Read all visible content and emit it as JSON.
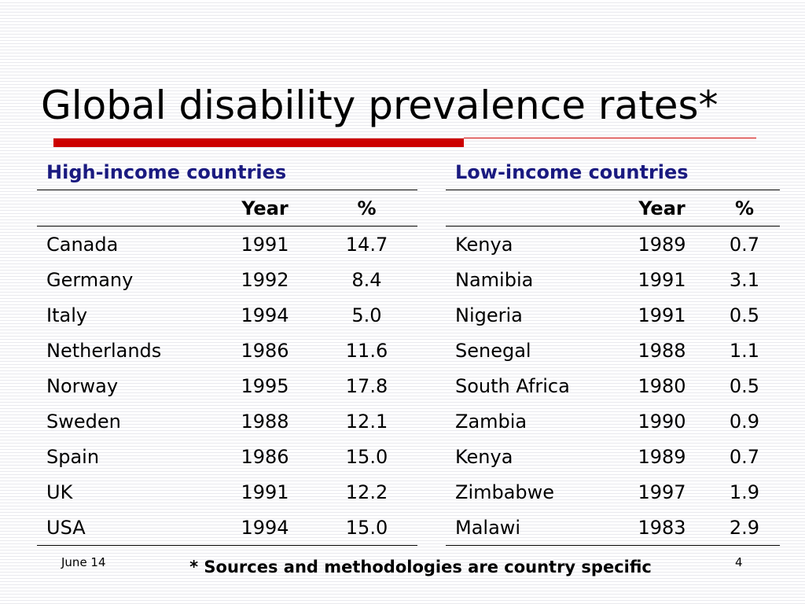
{
  "slide": {
    "title": "Global disability prevalence rates*",
    "date": "June 14",
    "page_number": "4",
    "footnote": "* Sources and methodologies are country specific",
    "accent_color": "#cc0000",
    "header_color": "#1a1a80"
  },
  "high_income": {
    "heading": "High-income countries",
    "col_year": "Year",
    "col_pct": "%",
    "rows": [
      {
        "country": "Canada",
        "year": "1991",
        "pct": "14.7"
      },
      {
        "country": "Germany",
        "year": "1992",
        "pct": "8.4"
      },
      {
        "country": "Italy",
        "year": "1994",
        "pct": "5.0"
      },
      {
        "country": "Netherlands",
        "year": "1986",
        "pct": "11.6"
      },
      {
        "country": "Norway",
        "year": "1995",
        "pct": "17.8"
      },
      {
        "country": "Sweden",
        "year": "1988",
        "pct": "12.1"
      },
      {
        "country": "Spain",
        "year": "1986",
        "pct": "15.0"
      },
      {
        "country": "UK",
        "year": "1991",
        "pct": "12.2"
      },
      {
        "country": "USA",
        "year": "1994",
        "pct": "15.0"
      }
    ]
  },
  "low_income": {
    "heading": "Low-income countries",
    "col_year": "Year",
    "col_pct": "%",
    "rows": [
      {
        "country": "Kenya",
        "year": "1989",
        "pct": "0.7"
      },
      {
        "country": "Namibia",
        "year": "1991",
        "pct": "3.1"
      },
      {
        "country": "Nigeria",
        "year": "1991",
        "pct": "0.5"
      },
      {
        "country": "Senegal",
        "year": "1988",
        "pct": "1.1"
      },
      {
        "country": "South Africa",
        "year": "1980",
        "pct": "0.5"
      },
      {
        "country": "Zambia",
        "year": "1990",
        "pct": "0.9"
      },
      {
        "country": "Kenya",
        "year": "1989",
        "pct": "0.7"
      },
      {
        "country": "Zimbabwe",
        "year": "1997",
        "pct": "1.9"
      },
      {
        "country": "Malawi",
        "year": "1983",
        "pct": "2.9"
      }
    ]
  }
}
